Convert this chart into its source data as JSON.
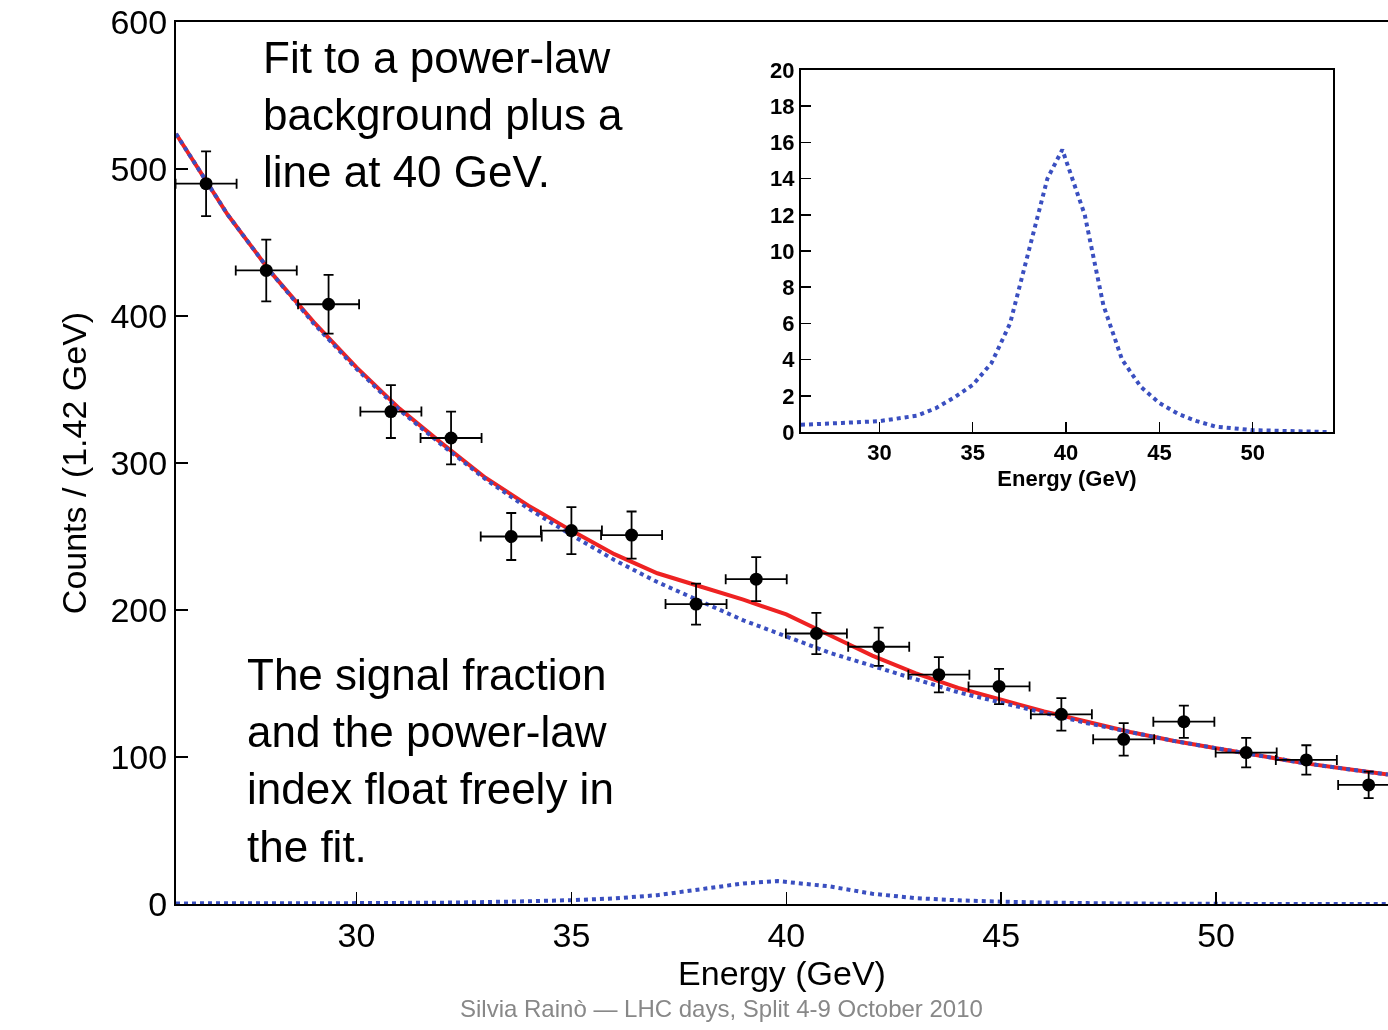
{
  "chart_data": [
    {
      "type": "scatter",
      "xlabel": "Energy (GeV)",
      "ylabel": "Counts / (1.42 GeV)",
      "xlim": [
        25.8,
        54
      ],
      "ylim": [
        0,
        600
      ],
      "xticks": [
        30,
        35,
        40,
        45,
        50
      ],
      "yticks": [
        0,
        100,
        200,
        300,
        400,
        500,
        600
      ],
      "annotations": [
        "Fit to a power-law\nbackground plus a\nline at 40 GeV.",
        "The signal fraction\nand the power-law\nindex float freely in\nthe fit.",
        "Silvia Rainò — LHC days, Split 4-9 October 2010"
      ],
      "series": [
        {
          "type": "line",
          "color": "#ee2222",
          "line_style": "solid",
          "marker": "none",
          "x": [
            25.8,
            27,
            28,
            29,
            30,
            31,
            32,
            33,
            34,
            35,
            36,
            37,
            38,
            39,
            40,
            41,
            42,
            43,
            44,
            45,
            46,
            47,
            48,
            49,
            50,
            51,
            52,
            53,
            54
          ],
          "values": [
            524,
            469,
            430,
            396,
            365,
            337,
            313,
            290,
            271,
            254,
            238,
            225,
            216,
            207,
            197,
            183,
            169,
            157,
            147,
            139,
            131,
            124,
            117,
            111,
            106,
            101,
            96,
            92,
            88
          ]
        },
        {
          "type": "line",
          "color": "#3a4fc0",
          "line_style": "dotted",
          "marker": "none",
          "x": [
            25.8,
            27,
            28,
            29,
            30,
            31,
            32,
            33,
            34,
            35,
            36,
            37,
            38,
            39,
            40,
            41,
            42,
            43,
            44,
            45,
            46,
            47,
            48,
            49,
            50,
            51,
            52,
            53,
            54
          ],
          "values": [
            524,
            469,
            430,
            395,
            364,
            336,
            312,
            289,
            269,
            251,
            234,
            219,
            206,
            193,
            182,
            171,
            162,
            153,
            144,
            137,
            130,
            123,
            117,
            111,
            106,
            101,
            96,
            92,
            88
          ]
        },
        {
          "type": "line",
          "color": "#3a4fc0",
          "line_style": "dotted",
          "marker": "none",
          "x": [
            25.8,
            28,
            30,
            32,
            33,
            34,
            35,
            36,
            37,
            38,
            39,
            39.8,
            41,
            42,
            43,
            44,
            45,
            46,
            47,
            48,
            50,
            54
          ],
          "values": [
            0.4,
            0.5,
            0.6,
            0.9,
            1.3,
            1.9,
            2.6,
            3.8,
            6,
            10,
            14,
            15.6,
            12,
            7,
            4,
            2.5,
            1.6,
            1,
            0.6,
            0.3,
            0.1,
            0
          ]
        },
        {
          "color": "#000000",
          "marker": "circle",
          "x": [
            26.5,
            27.9,
            29.35,
            30.8,
            32.2,
            33.6,
            35.0,
            36.4,
            37.9,
            39.3,
            40.7,
            42.15,
            43.55,
            44.95,
            46.4,
            47.85,
            49.25,
            50.7,
            52.1,
            53.55
          ],
          "values": [
            490,
            431,
            408,
            335,
            317,
            250,
            254,
            251,
            204,
            221,
            184,
            175,
            156,
            148,
            129,
            112,
            124,
            103,
            98,
            81
          ],
          "errors": [
            22,
            21,
            20,
            18,
            18,
            16,
            16,
            16,
            14,
            15,
            14,
            13,
            12,
            12,
            11,
            11,
            11,
            10,
            10,
            9
          ],
          "xerrors": [
            0.71,
            0.71,
            0.71,
            0.71,
            0.71,
            0.71,
            0.71,
            0.71,
            0.71,
            0.71,
            0.71,
            0.71,
            0.71,
            0.71,
            0.71,
            0.71,
            0.71,
            0.71,
            0.71,
            0.71
          ]
        }
      ]
    },
    {
      "type": "line",
      "xlabel": "Energy (GeV)",
      "xlim": [
        25.8,
        54.3
      ],
      "ylim": [
        0,
        20
      ],
      "xticks": [
        30,
        35,
        40,
        45,
        50
      ],
      "yticks": [
        0,
        2,
        4,
        6,
        8,
        10,
        12,
        14,
        16,
        18,
        20
      ],
      "series": [
        {
          "color": "#3a4fc0",
          "line_style": "dotted",
          "marker": "none",
          "x": [
            25.8,
            28,
            30,
            32,
            33,
            34,
            35,
            36,
            37,
            38,
            39,
            39.8,
            41,
            42,
            43,
            44,
            45,
            46,
            47,
            48,
            50,
            54
          ],
          "values": [
            0.4,
            0.5,
            0.6,
            0.9,
            1.3,
            1.9,
            2.6,
            3.8,
            6,
            10,
            14,
            15.6,
            12,
            7,
            4,
            2.5,
            1.6,
            1,
            0.6,
            0.3,
            0.1,
            0
          ]
        }
      ]
    }
  ]
}
